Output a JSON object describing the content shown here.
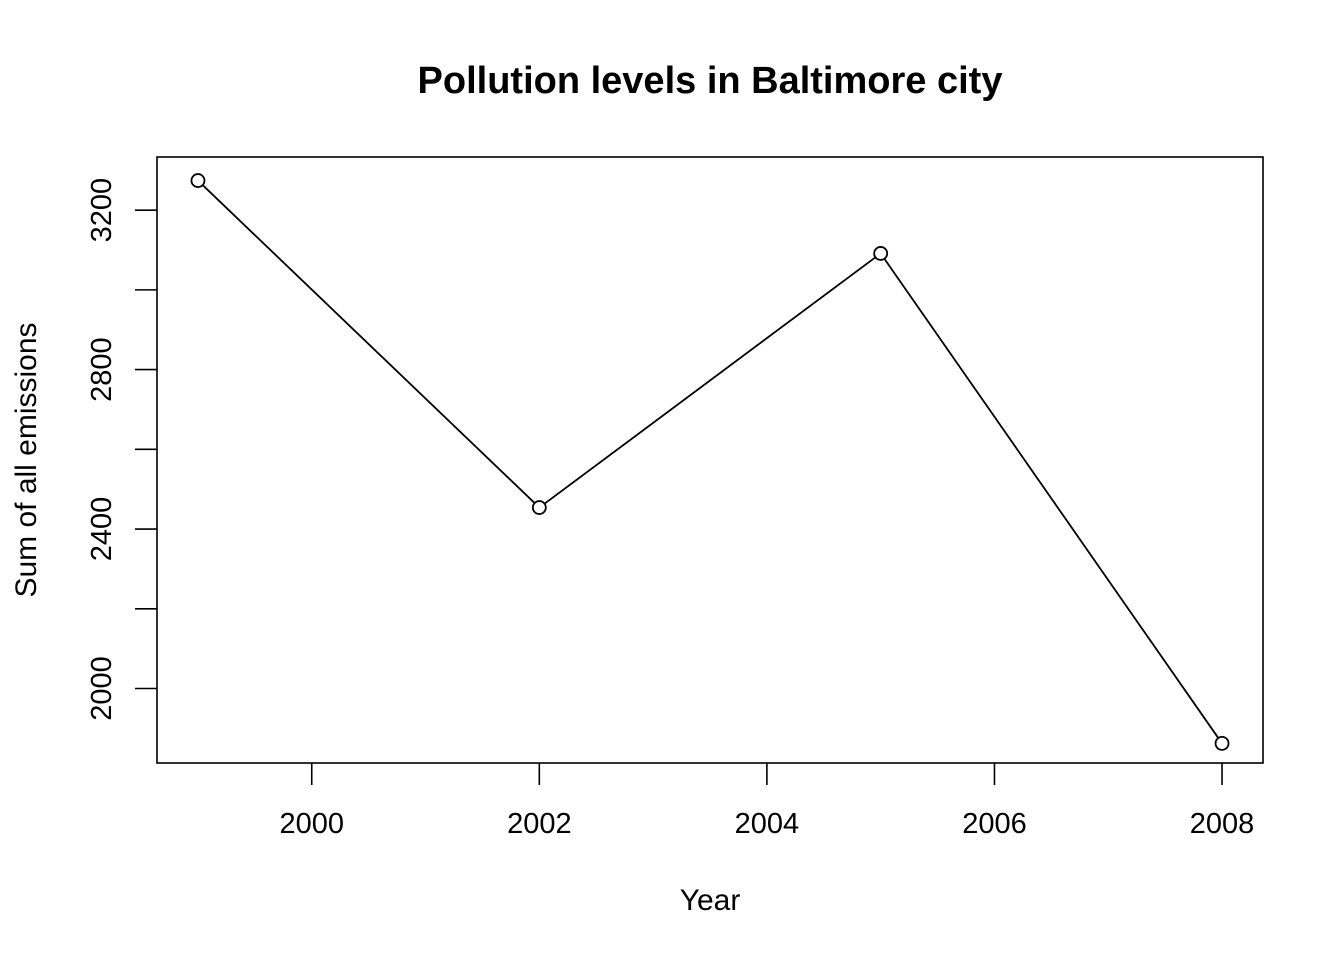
{
  "chart_data": {
    "type": "line",
    "title": "Pollution levels in Baltimore city",
    "xlabel": "Year",
    "ylabel": "Sum of all emissions",
    "x": [
      1999,
      2002,
      2005,
      2008
    ],
    "series": [
      {
        "values": [
          3274.18,
          2453.92,
          3091.35,
          1862.28
        ]
      }
    ],
    "xlim": [
      1998.64,
      2008.36
    ],
    "ylim": [
      1813.1,
      3333.3
    ],
    "xticks": [
      2000,
      2002,
      2004,
      2006,
      2008
    ],
    "yticks": [
      2000,
      2200,
      2400,
      2600,
      2800,
      3000,
      3200
    ],
    "ytick_labels": [
      "2000",
      "",
      "2400",
      "",
      "2800",
      "",
      "3200"
    ],
    "grid": false,
    "legend": "none",
    "line_color": "#000000",
    "marker": "open-circle"
  }
}
